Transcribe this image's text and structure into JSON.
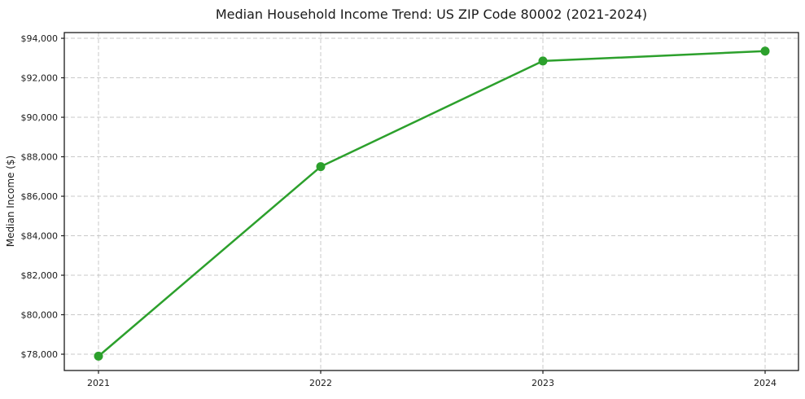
{
  "chart_data": {
    "type": "line",
    "title": "Median Household Income Trend: US ZIP Code 80002 (2021-2024)",
    "xlabel": "",
    "ylabel": "Median Income ($)",
    "categories": [
      "2021",
      "2022",
      "2023",
      "2024"
    ],
    "values": [
      77900,
      87500,
      92850,
      93350
    ],
    "ylim": [
      77175,
      94290
    ],
    "yticks": [
      {
        "value": 78000,
        "label": "$78,000"
      },
      {
        "value": 80000,
        "label": "$80,000"
      },
      {
        "value": 82000,
        "label": "$82,000"
      },
      {
        "value": 84000,
        "label": "$84,000"
      },
      {
        "value": 86000,
        "label": "$86,000"
      },
      {
        "value": 88000,
        "label": "$88,000"
      },
      {
        "value": 90000,
        "label": "$90,000"
      },
      {
        "value": 92000,
        "label": "$92,000"
      },
      {
        "value": 94000,
        "label": "$94,000"
      }
    ],
    "grid": true,
    "grid_style": "dashed",
    "legend": false,
    "marker": "circle",
    "line_style": "solid",
    "colors": {
      "line": "#2ca02c",
      "marker": "#2ca02c",
      "grid": "#c9c9c9",
      "spine": "#1a1a1a",
      "text": "#1a1a1a",
      "background": "#ffffff"
    }
  }
}
